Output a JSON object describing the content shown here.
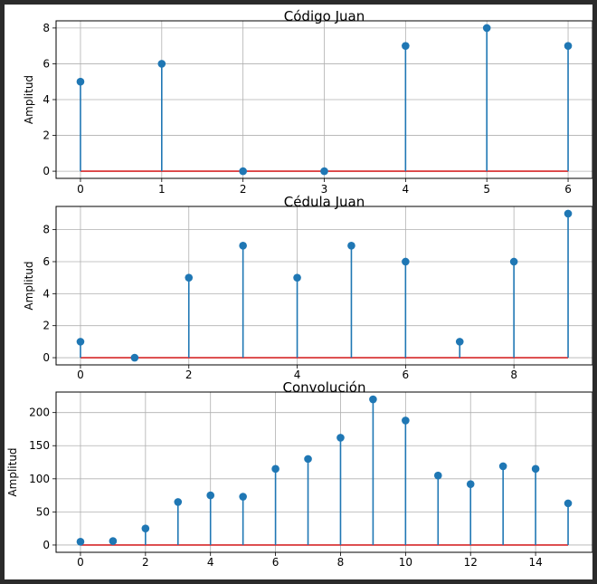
{
  "chart_data": [
    {
      "type": "stem",
      "title": "Código Juan",
      "ylabel": "Amplitud",
      "xlabel": "",
      "x": [
        0,
        1,
        2,
        3,
        4,
        5,
        6
      ],
      "values": [
        5,
        6,
        0,
        0,
        7,
        8,
        7
      ],
      "xticks": [
        0,
        1,
        2,
        3,
        4,
        5,
        6
      ],
      "yticks": [
        0,
        2,
        4,
        6,
        8
      ],
      "xlim": [
        -0.3,
        6.3
      ],
      "ylim": [
        -0.4,
        8.4
      ],
      "grid": true,
      "stem_color": "#1f77b4",
      "baseline_color": "#d62728"
    },
    {
      "type": "stem",
      "title": "Cédula Juan",
      "ylabel": "Amplitud",
      "xlabel": "",
      "x": [
        0,
        1,
        2,
        3,
        4,
        5,
        6,
        7,
        8,
        9
      ],
      "values": [
        1,
        0,
        5,
        7,
        5,
        7,
        6,
        1,
        6,
        9
      ],
      "xticks": [
        0,
        2,
        4,
        6,
        8
      ],
      "yticks": [
        0,
        2,
        4,
        6,
        8
      ],
      "xlim": [
        -0.45,
        9.45
      ],
      "ylim": [
        -0.45,
        9.45
      ],
      "grid": true,
      "stem_color": "#1f77b4",
      "baseline_color": "#d62728"
    },
    {
      "type": "stem",
      "title": "Convolución",
      "ylabel": "Amplitud",
      "xlabel": "",
      "x": [
        0,
        1,
        2,
        3,
        4,
        5,
        6,
        7,
        8,
        9,
        10,
        11,
        12,
        13,
        14,
        15
      ],
      "values": [
        5,
        6,
        25,
        65,
        75,
        73,
        115,
        130,
        162,
        220,
        188,
        105,
        92,
        119,
        115,
        63
      ],
      "xticks": [
        0,
        2,
        4,
        6,
        8,
        10,
        12,
        14
      ],
      "yticks": [
        0,
        50,
        100,
        150,
        200
      ],
      "xlim": [
        -0.75,
        15.75
      ],
      "ylim": [
        -11,
        231
      ],
      "grid": true,
      "stem_color": "#1f77b4",
      "baseline_color": "#d62728"
    }
  ]
}
